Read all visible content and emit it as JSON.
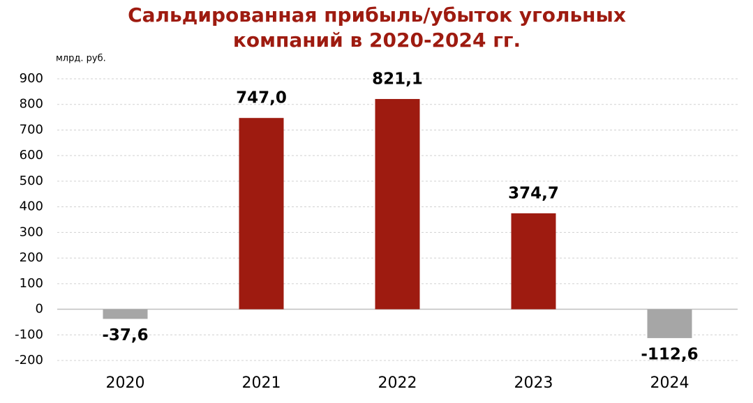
{
  "chart_data": {
    "type": "bar",
    "title": "Сальдированная прибыль/убыток угольных компаний в 2020-2024 гг.",
    "y_unit": "млрд. руб.",
    "categories": [
      "2020",
      "2021",
      "2022",
      "2023",
      "2024"
    ],
    "values": [
      -37.6,
      747,
      821.1,
      374.7,
      -112.6
    ],
    "value_labels": [
      "-37,6",
      "747,0",
      "821,1",
      "374,7",
      "-112,6"
    ],
    "colors": [
      "#a6a6a6",
      "#9e1b10",
      "#9e1b10",
      "#9e1b10",
      "#a6a6a6"
    ],
    "ylim": [
      -200,
      900
    ],
    "yticks": [
      -200,
      -100,
      0,
      100,
      200,
      300,
      400,
      500,
      600,
      700,
      800,
      900
    ],
    "grid": true
  }
}
